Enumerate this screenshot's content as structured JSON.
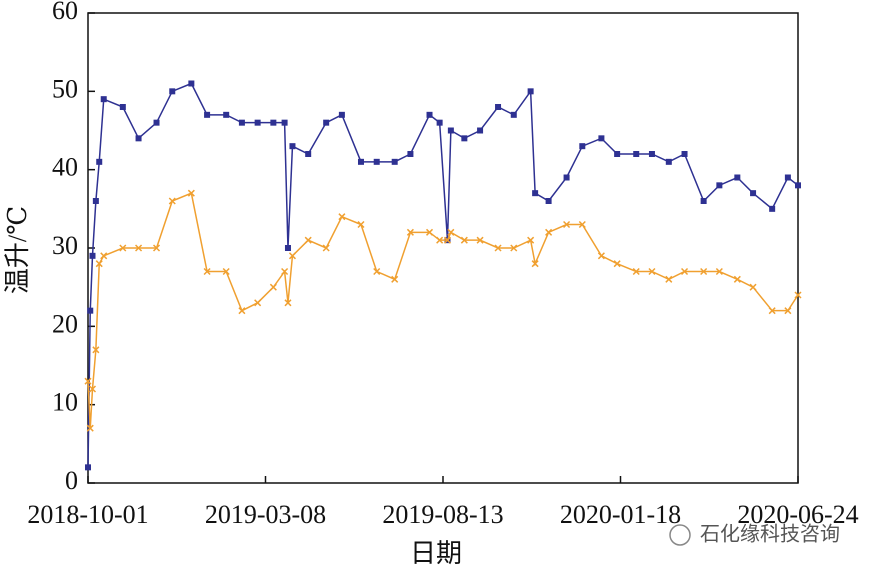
{
  "chart_data": {
    "type": "line",
    "xlabel": "日期",
    "ylabel": "温升/℃",
    "watermark": "石化缘科技咨询",
    "x": [
      "2018-10-01",
      "2018-10-03",
      "2018-10-05",
      "2018-10-08",
      "2018-10-11",
      "2018-10-15",
      "2018-11-01",
      "2018-11-15",
      "2018-12-01",
      "2018-12-15",
      "2019-01-01",
      "2019-01-15",
      "2019-02-01",
      "2019-02-15",
      "2019-03-01",
      "2019-03-15",
      "2019-03-25",
      "2019-03-28",
      "2019-04-01",
      "2019-04-15",
      "2019-05-01",
      "2019-05-15",
      "2019-06-01",
      "2019-06-15",
      "2019-07-01",
      "2019-07-15",
      "2019-08-01",
      "2019-08-10",
      "2019-08-17",
      "2019-08-20",
      "2019-09-01",
      "2019-09-15",
      "2019-10-01",
      "2019-10-15",
      "2019-10-30",
      "2019-11-03",
      "2019-11-15",
      "2019-12-01",
      "2019-12-15",
      "2020-01-01",
      "2020-01-15",
      "2020-02-01",
      "2020-02-15",
      "2020-03-01",
      "2020-03-15",
      "2020-04-01",
      "2020-04-15",
      "2020-05-01",
      "2020-05-15",
      "2020-06-01",
      "2020-06-15",
      "2020-06-24"
    ],
    "series": [
      {
        "name": "blue",
        "color": "#2e3192",
        "marker": "square",
        "values": [
          2,
          22,
          29,
          36,
          41,
          49,
          48,
          44,
          46,
          50,
          51,
          47,
          47,
          46,
          46,
          46,
          46,
          30,
          43,
          42,
          46,
          47,
          41,
          41,
          41,
          42,
          47,
          46,
          31,
          45,
          44,
          45,
          48,
          47,
          50,
          37,
          36,
          39,
          43,
          44,
          42,
          42,
          42,
          41,
          42,
          36,
          38,
          39,
          37,
          35,
          39,
          38
        ]
      },
      {
        "name": "orange",
        "color": "#f0a030",
        "marker": "x",
        "values": [
          13,
          7,
          12,
          17,
          28,
          29,
          30,
          30,
          30,
          36,
          37,
          27,
          27,
          22,
          23,
          25,
          27,
          23,
          29,
          31,
          30,
          34,
          33,
          27,
          26,
          32,
          32,
          31,
          31,
          32,
          31,
          31,
          30,
          30,
          31,
          28,
          32,
          33,
          33,
          29,
          28,
          27,
          27,
          26,
          27,
          27,
          27,
          26,
          25,
          22,
          22,
          24
        ]
      }
    ],
    "xlim": [
      "2018-10-01",
      "2020-06-24"
    ],
    "xticks": [
      "2018-10-01",
      "2019-03-08",
      "2019-08-13",
      "2020-01-18",
      "2020-06-24"
    ],
    "ylim": [
      0,
      60
    ],
    "yticks": [
      0,
      10,
      20,
      30,
      40,
      50,
      60
    ]
  }
}
